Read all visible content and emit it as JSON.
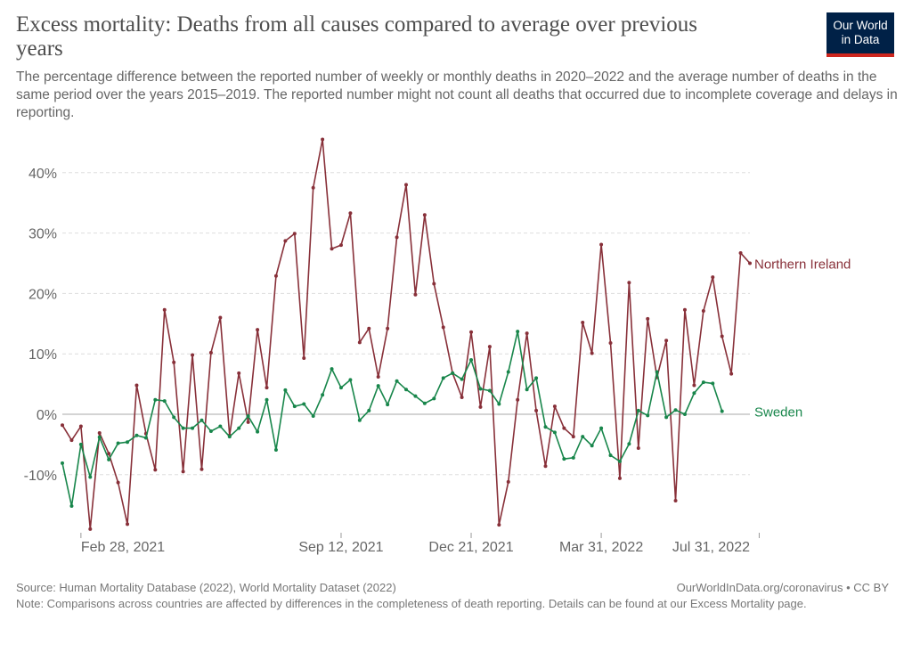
{
  "header": {
    "title": "Excess mortality: Deaths from all causes compared to average over previous years",
    "subtitle": "The percentage difference between the reported number of weekly or monthly deaths in 2020–2022 and the average number of deaths in the same period over the years 2015–2019. The reported number might not count all deaths that occurred due to incomplete coverage and delays in reporting.",
    "logo_line1": "Our World",
    "logo_line2": "in Data"
  },
  "footer": {
    "source": "Source: Human Mortality Database (2022), World Mortality Dataset (2022)",
    "site": "OurWorldInData.org/coronavirus • CC BY",
    "note": "Note: Comparisons across countries are affected by differences in the completeness of death reporting. Details can be found at our Excess Mortality page."
  },
  "chart_data": {
    "type": "line",
    "ylim": [
      -19,
      46
    ],
    "yticks": [
      -10,
      0,
      10,
      20,
      30,
      40
    ],
    "ytick_labels": [
      "-10%",
      "0%",
      "10%",
      "20%",
      "30%",
      "40%"
    ],
    "xticks": [
      {
        "week": 1,
        "label": "Feb 28, 2021"
      },
      {
        "week": 29,
        "label": "Sep 12, 2021"
      },
      {
        "week": 43,
        "label": "Dec 21, 2021"
      },
      {
        "week": 57,
        "label": "Mar 31, 2022"
      },
      {
        "week": 74,
        "label": "Jul 31, 2022"
      }
    ],
    "x_start_week": -1,
    "x_end_week": 73,
    "grid": true,
    "series": [
      {
        "name": "Northern Ireland",
        "color": "#883039",
        "values": [
          -1.8,
          -4.3,
          -2.0,
          -19.0,
          -3.1,
          -6.5,
          -11.3,
          -18.2,
          4.8,
          -3.2,
          -9.2,
          17.3,
          8.6,
          -9.5,
          9.8,
          -9.1,
          10.2,
          16.0,
          -3.5,
          6.8,
          -1.3,
          14.0,
          4.4,
          22.9,
          28.7,
          29.9,
          9.3,
          37.5,
          45.5,
          27.4,
          28.0,
          33.3,
          11.9,
          14.2,
          6.2,
          14.2,
          29.3,
          38.0,
          19.8,
          33.0,
          21.6,
          14.4,
          6.8,
          2.8,
          13.6,
          1.2,
          11.2,
          -18.3,
          -11.2,
          2.4,
          13.4,
          0.6,
          -8.6,
          1.3,
          -2.3,
          -3.7,
          15.2,
          10.1,
          28.1,
          11.8,
          -10.6,
          21.8,
          -5.6,
          15.8,
          6.1,
          12.2,
          -14.3,
          17.3,
          4.8,
          17.1,
          22.7,
          12.9,
          6.7,
          26.7,
          25.0
        ]
      },
      {
        "name": "Sweden",
        "color": "#18864b",
        "values": [
          -8.1,
          -15.2,
          -5.0,
          -10.4,
          -3.8,
          -7.5,
          -4.8,
          -4.6,
          -3.5,
          -3.9,
          2.4,
          2.2,
          -0.5,
          -2.3,
          -2.3,
          -1.0,
          -2.8,
          -2.0,
          -3.7,
          -2.3,
          -0.3,
          -2.9,
          2.4,
          -5.9,
          4.0,
          1.3,
          1.7,
          -0.3,
          3.2,
          7.5,
          4.4,
          5.7,
          -1.0,
          0.6,
          4.7,
          1.6,
          5.5,
          4.1,
          3.0,
          1.8,
          2.6,
          6.0,
          6.8,
          5.8,
          9.0,
          4.2,
          3.9,
          1.7,
          7.0,
          13.7,
          4.1,
          6.0,
          -2.1,
          -3.0,
          -7.4,
          -7.2,
          -3.7,
          -5.2,
          -2.3,
          -6.8,
          -7.8,
          -4.9,
          0.6,
          -0.2,
          7.0,
          -0.5,
          0.7,
          0.0,
          3.5,
          5.3,
          5.1,
          0.5
        ]
      }
    ]
  }
}
